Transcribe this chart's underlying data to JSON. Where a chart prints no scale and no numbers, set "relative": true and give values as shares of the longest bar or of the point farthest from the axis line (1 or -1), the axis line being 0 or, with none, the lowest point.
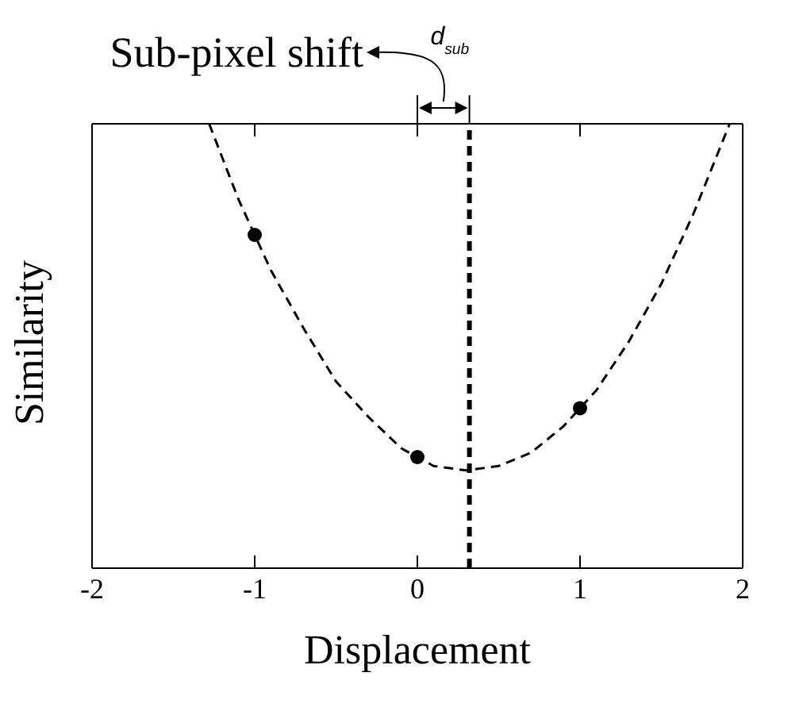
{
  "chart_data": {
    "type": "scatter",
    "relative": true,
    "xlabel": "Displacement",
    "ylabel": "Similarity",
    "xlim": [
      -2,
      2
    ],
    "xticks": [
      -2,
      -1,
      0,
      1,
      2
    ],
    "series": [
      {
        "x": [
          -1,
          0,
          1
        ],
        "values": [
          0.75,
          0.25,
          0.36
        ],
        "color": "#000000",
        "marker": "circle"
      },
      {
        "type": "line",
        "x": [
          -1.28,
          -1.1,
          -0.9,
          -0.7,
          -0.5,
          -0.3,
          -0.1,
          0.1,
          0.3,
          0.5,
          0.7,
          0.9,
          1.1,
          1.3,
          1.5,
          1.7,
          1.92
        ],
        "values": [
          1.0,
          0.83,
          0.67,
          0.54,
          0.42,
          0.34,
          0.27,
          0.23,
          0.22,
          0.23,
          0.26,
          0.32,
          0.4,
          0.51,
          0.64,
          0.8,
          1.0
        ],
        "color": "#000000",
        "marker": "none",
        "line_style": "dashed"
      }
    ],
    "ref_lines": [
      {
        "axis": "x",
        "value": 0.32,
        "color": "#000000",
        "line_style": "dashed"
      }
    ],
    "annotations": [
      "Sub-pixel shift",
      "d$_{sub}$"
    ]
  }
}
